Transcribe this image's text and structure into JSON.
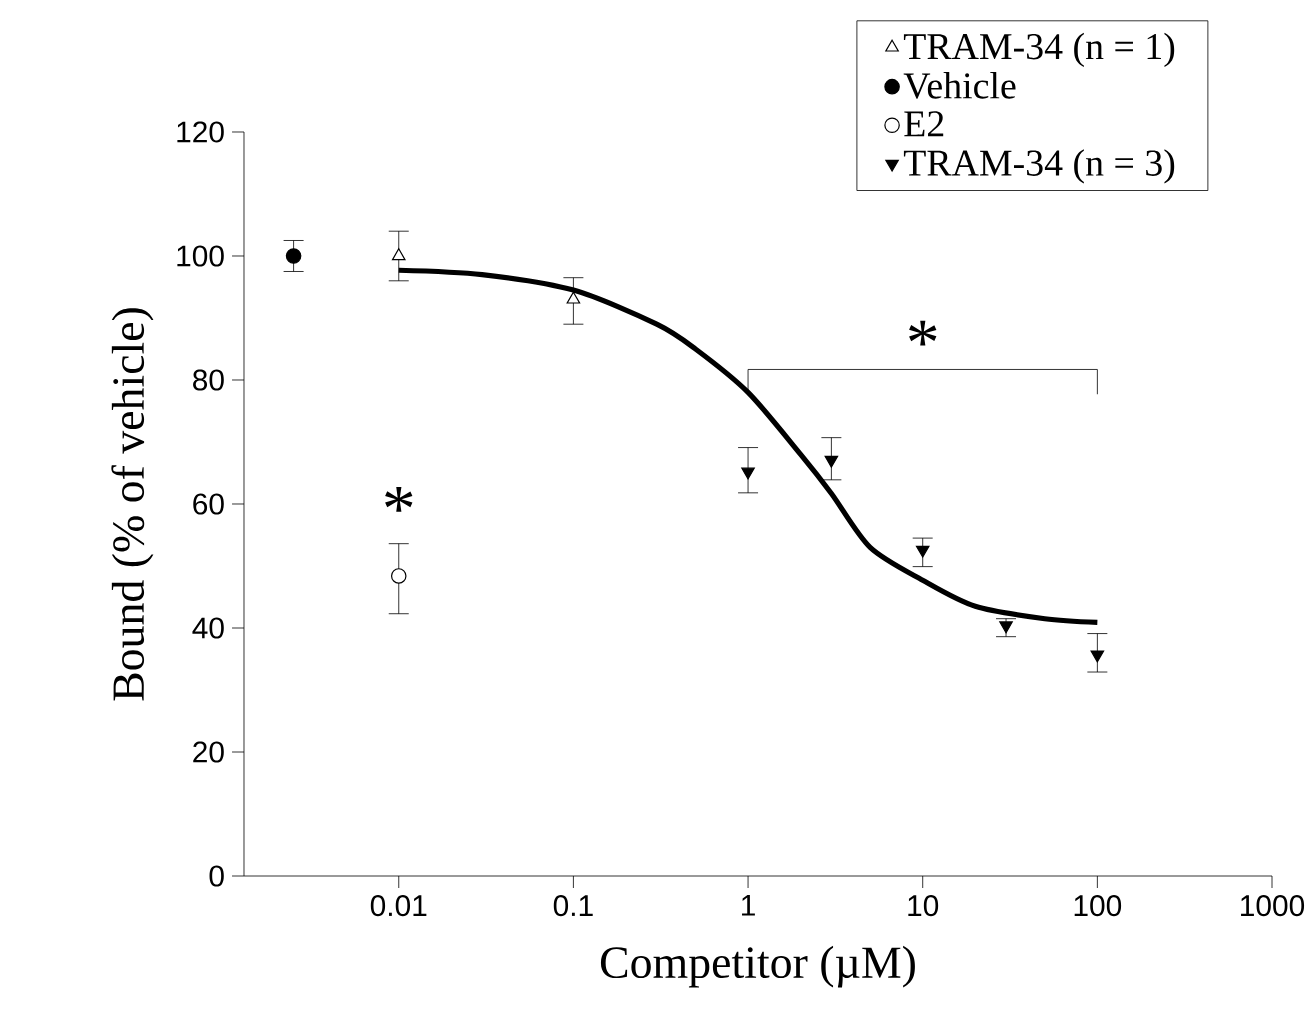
{
  "chart_data": {
    "type": "scatter",
    "xlabel": "Competitor (µM)",
    "ylabel": "Bound (% of vehicle)",
    "log": "x",
    "xlim": [
      0.0013,
      1000
    ],
    "ylim": [
      0,
      120
    ],
    "xticks": [
      0.01,
      0.1,
      1,
      10,
      100,
      1000
    ],
    "yticks": [
      0,
      20,
      40,
      60,
      80,
      100,
      120
    ],
    "legend": "top right",
    "grid": false,
    "series": [
      {
        "name": "TRAM-34 (n = 1)",
        "color": "#ffffff",
        "marker": "triangle",
        "x": [
          0.01,
          0.1
        ],
        "values": [
          100,
          93
        ],
        "errors": [
          [
            96,
            104
          ],
          [
            89,
            96.5
          ]
        ]
      },
      {
        "name": "Vehicle",
        "color": "#000000",
        "marker": "circle",
        "x": [
          0.0025
        ],
        "values": [
          100
        ],
        "errors": [
          [
            97.5,
            102.5
          ]
        ]
      },
      {
        "name": "E2",
        "color": "#ffffff",
        "marker": "circle",
        "x": [
          0.01
        ],
        "values": [
          48.4
        ],
        "errors": [
          [
            42.3,
            53.6
          ]
        ]
      },
      {
        "name": "TRAM-34 (n = 3)",
        "color": "#000000",
        "marker": "triangle-down",
        "x": [
          1,
          3,
          10,
          30,
          100
        ],
        "values": [
          65.2,
          67.1,
          52.6,
          40.4,
          35.7
        ],
        "errors": [
          [
            61.8,
            69.1
          ],
          [
            63.9,
            70.7
          ],
          [
            49.9,
            54.5
          ],
          [
            38.6,
            41.5
          ],
          [
            32.9,
            39.1
          ]
        ]
      },
      {
        "type": "line",
        "color": "#000000",
        "marker": "none",
        "x": [
          0.01,
          0.03,
          0.1,
          0.3,
          0.5,
          1,
          2,
          3,
          5,
          10,
          20,
          50,
          100
        ],
        "values": [
          97.7,
          97,
          94.5,
          89,
          85,
          78,
          68,
          61.7,
          53,
          47.7,
          43.5,
          41.5,
          40.9
        ]
      }
    ],
    "annotations": [
      "*",
      "*"
    ]
  }
}
